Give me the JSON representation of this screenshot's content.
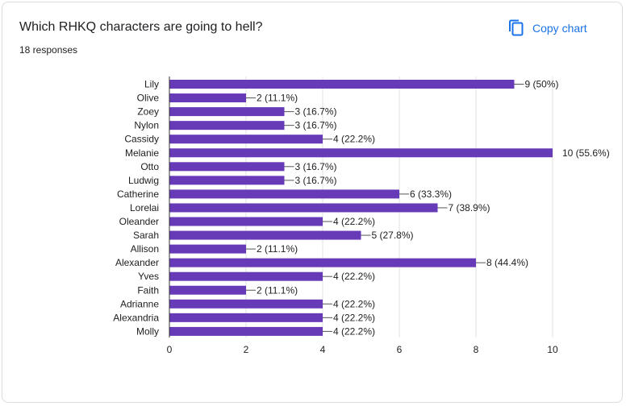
{
  "header": {
    "title": "Which RHKQ characters are going to hell?",
    "responses": "18 responses",
    "copy_label": "Copy chart",
    "copy_icon": "copy-icon"
  },
  "colors": {
    "bar": "#673ab7",
    "accent": "#1a73e8",
    "grid": "#e0e0e0",
    "axis": "#333333",
    "text": "#212121"
  },
  "chart_data": {
    "type": "bar",
    "orientation": "horizontal",
    "categories": [
      "Lily",
      "Olive",
      "Zoey",
      "Nylon",
      "Cassidy",
      "Melanie",
      "Otto",
      "Ludwig",
      "Catherine",
      "Lorelai",
      "Oleander",
      "Sarah",
      "Allison",
      "Alexander",
      "Yves",
      "Faith",
      "Adrianne",
      "Alexandria",
      "Molly"
    ],
    "values": [
      9,
      2,
      3,
      3,
      4,
      10,
      3,
      3,
      6,
      7,
      4,
      5,
      2,
      8,
      4,
      2,
      4,
      4,
      4
    ],
    "data_labels": [
      "9 (50%)",
      "2 (11.1%)",
      "3 (16.7%)",
      "3 (16.7%)",
      "4 (22.2%)",
      "10 (55.6%)",
      "3 (16.7%)",
      "3 (16.7%)",
      "6 (33.3%)",
      "7 (38.9%)",
      "4 (22.2%)",
      "5 (27.8%)",
      "2 (11.1%)",
      "8 (44.4%)",
      "4 (22.2%)",
      "2 (11.1%)",
      "4 (22.2%)",
      "4 (22.2%)",
      "4 (22.2%)"
    ],
    "xlim": [
      0,
      10
    ],
    "xticks": [
      0,
      2,
      4,
      6,
      8,
      10
    ],
    "grid": true,
    "legend": "none"
  }
}
